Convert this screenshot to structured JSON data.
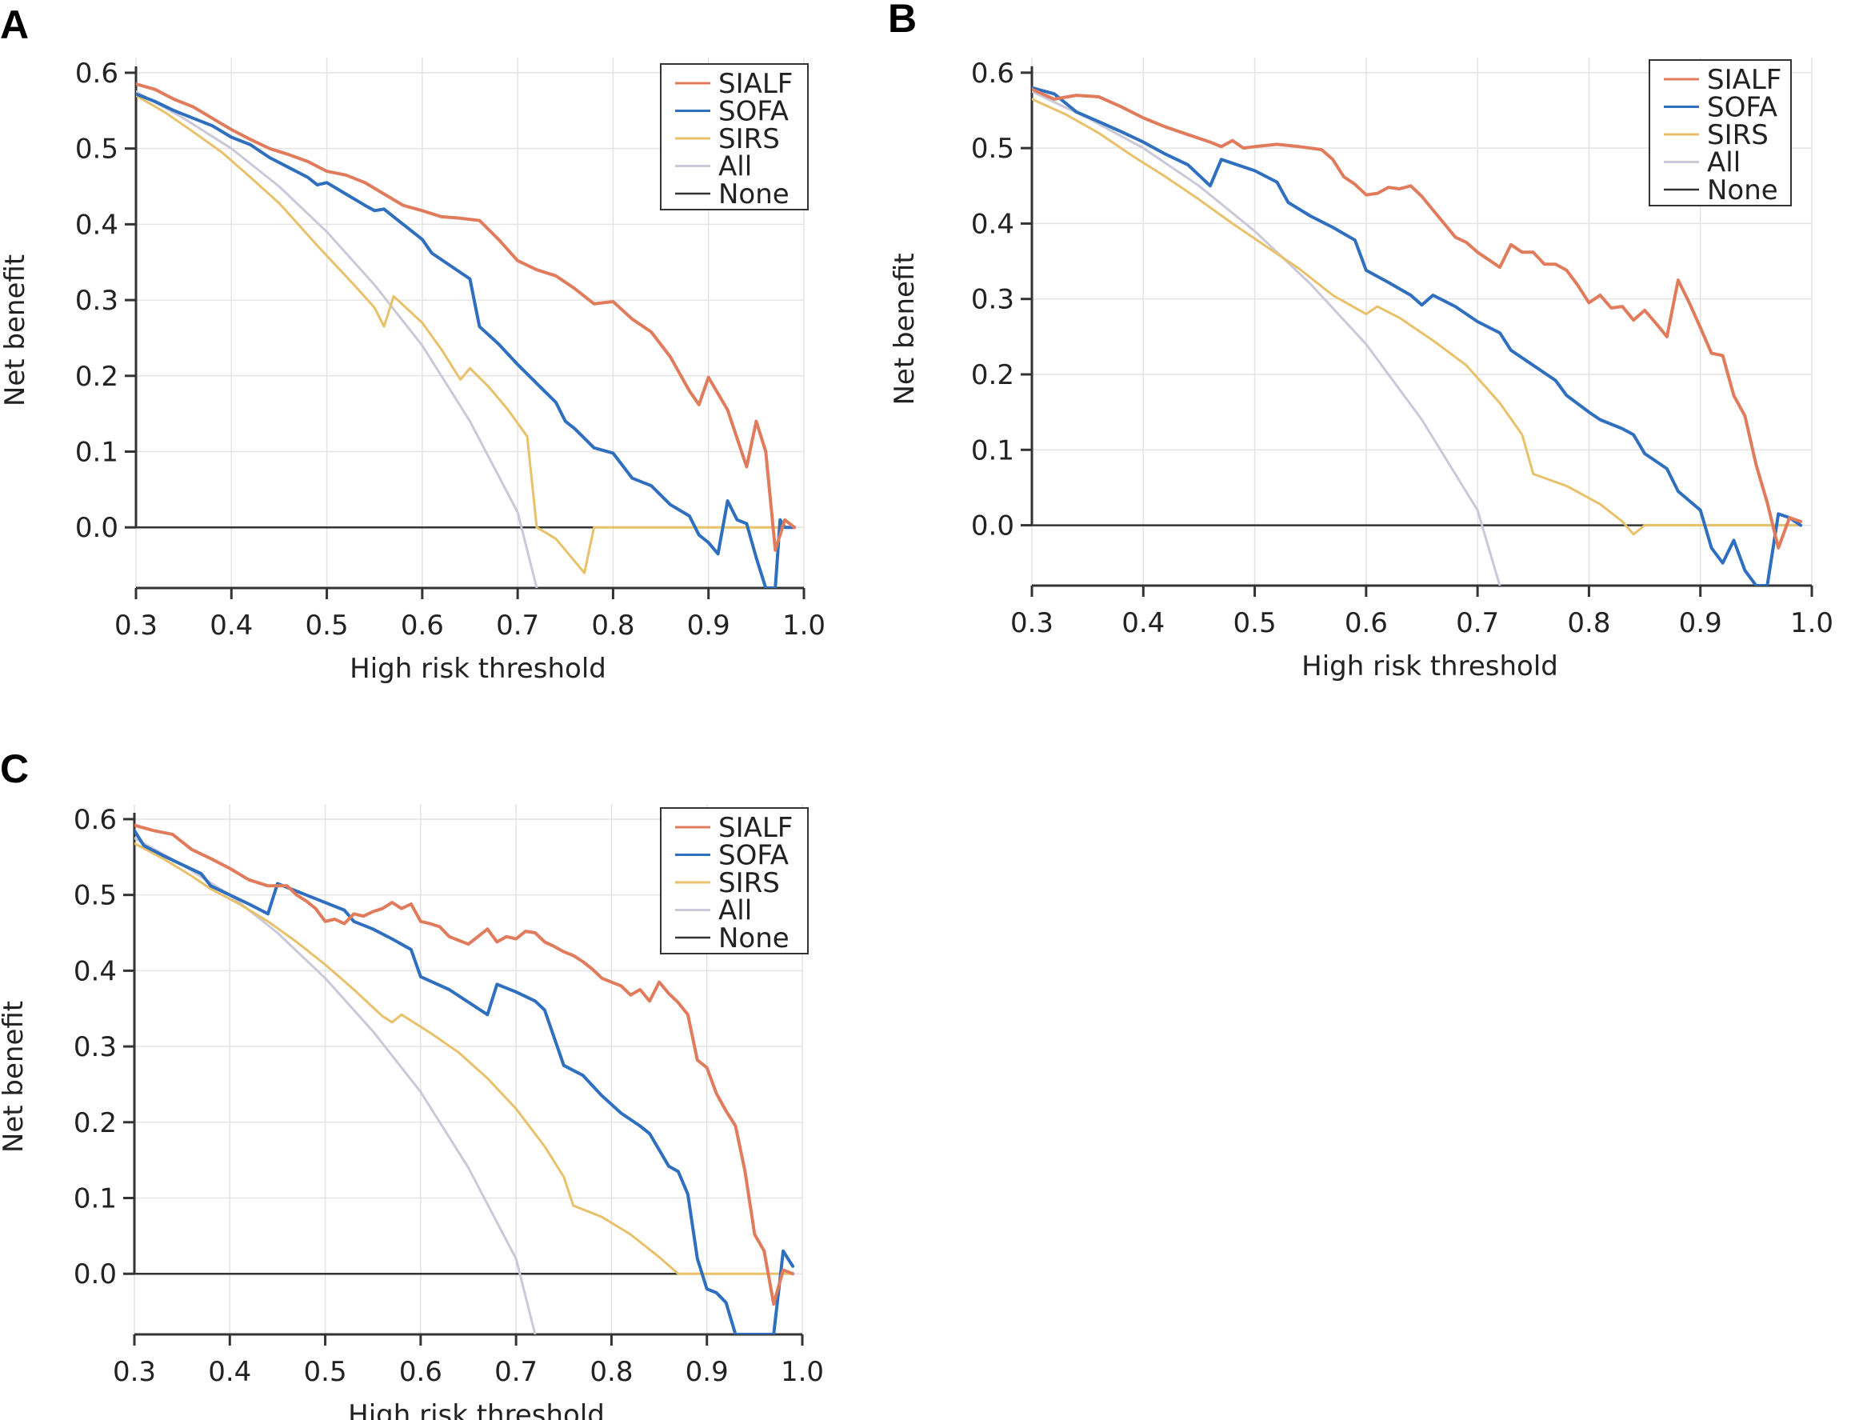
{
  "chart_data": [
    {
      "type": "line",
      "panel_label": "A",
      "xlabel": "High risk threshold",
      "ylabel": "Net benefit",
      "xlim": [
        0.3,
        1.0
      ],
      "ylim": [
        -0.08,
        0.62
      ],
      "xticks": [
        "0.3",
        "0.4",
        "0.5",
        "0.6",
        "0.7",
        "0.8",
        "0.9",
        "1.0"
      ],
      "yticks": [
        "0.0",
        "0.1",
        "0.2",
        "0.3",
        "0.4",
        "0.5",
        "0.6"
      ],
      "grid": true,
      "legend": "top-right",
      "series": [
        {
          "name": "SIALF",
          "color": "#e07b5c",
          "x": [
            0.3,
            0.32,
            0.34,
            0.36,
            0.38,
            0.4,
            0.42,
            0.44,
            0.46,
            0.48,
            0.5,
            0.52,
            0.54,
            0.56,
            0.58,
            0.6,
            0.62,
            0.64,
            0.66,
            0.68,
            0.7,
            0.72,
            0.74,
            0.76,
            0.78,
            0.8,
            0.82,
            0.84,
            0.86,
            0.88,
            0.89,
            0.9,
            0.92,
            0.94,
            0.95,
            0.96,
            0.97,
            0.98,
            0.99
          ],
          "y": [
            0.585,
            0.578,
            0.565,
            0.555,
            0.54,
            0.525,
            0.512,
            0.5,
            0.492,
            0.483,
            0.47,
            0.465,
            0.455,
            0.44,
            0.425,
            0.418,
            0.41,
            0.408,
            0.405,
            0.38,
            0.352,
            0.34,
            0.332,
            0.315,
            0.295,
            0.298,
            0.275,
            0.258,
            0.225,
            0.18,
            0.162,
            0.198,
            0.155,
            0.08,
            0.14,
            0.1,
            -0.03,
            0.01,
            0.0
          ]
        },
        {
          "name": "SOFA",
          "color": "#2f6fbf",
          "x": [
            0.3,
            0.32,
            0.34,
            0.36,
            0.38,
            0.4,
            0.42,
            0.44,
            0.46,
            0.48,
            0.49,
            0.5,
            0.52,
            0.54,
            0.55,
            0.56,
            0.58,
            0.6,
            0.61,
            0.63,
            0.65,
            0.66,
            0.68,
            0.7,
            0.72,
            0.74,
            0.75,
            0.76,
            0.78,
            0.8,
            0.82,
            0.84,
            0.86,
            0.88,
            0.89,
            0.9,
            0.91,
            0.92,
            0.93,
            0.94,
            0.95,
            0.96,
            0.97,
            0.975,
            0.98,
            0.99
          ],
          "y": [
            0.572,
            0.562,
            0.55,
            0.54,
            0.53,
            0.515,
            0.505,
            0.488,
            0.475,
            0.462,
            0.452,
            0.455,
            0.44,
            0.425,
            0.418,
            0.42,
            0.4,
            0.38,
            0.362,
            0.345,
            0.328,
            0.265,
            0.242,
            0.215,
            0.19,
            0.165,
            0.14,
            0.13,
            0.105,
            0.098,
            0.065,
            0.055,
            0.03,
            0.015,
            -0.01,
            -0.02,
            -0.035,
            0.035,
            0.01,
            0.005,
            -0.04,
            -0.08,
            -0.08,
            0.01,
            0.0,
            0.0
          ]
        },
        {
          "name": "SIRS",
          "color": "#e8c16a",
          "x": [
            0.3,
            0.33,
            0.36,
            0.39,
            0.42,
            0.45,
            0.47,
            0.49,
            0.51,
            0.53,
            0.55,
            0.56,
            0.57,
            0.6,
            0.62,
            0.64,
            0.65,
            0.67,
            0.69,
            0.71,
            0.72,
            0.74,
            0.76,
            0.77,
            0.78,
            0.8,
            0.85,
            0.9,
            0.95,
            0.99
          ],
          "y": [
            0.57,
            0.548,
            0.522,
            0.495,
            0.462,
            0.428,
            0.4,
            0.372,
            0.345,
            0.318,
            0.29,
            0.265,
            0.305,
            0.27,
            0.235,
            0.195,
            0.21,
            0.185,
            0.155,
            0.12,
            0.0,
            -0.015,
            -0.045,
            -0.06,
            0.0,
            0.0,
            0.0,
            0.0,
            0.0,
            0.0
          ]
        },
        {
          "name": "All",
          "color": "#c9c9d9",
          "x": [
            0.3,
            0.35,
            0.4,
            0.45,
            0.5,
            0.55,
            0.6,
            0.65,
            0.7,
            0.72
          ],
          "y": [
            0.575,
            0.54,
            0.5,
            0.45,
            0.39,
            0.32,
            0.24,
            0.14,
            0.02,
            -0.08
          ]
        },
        {
          "name": "None",
          "color": "#333333",
          "x": [
            0.3,
            1.0
          ],
          "y": [
            0.0,
            0.0
          ]
        }
      ]
    },
    {
      "type": "line",
      "panel_label": "B",
      "xlabel": "High risk threshold",
      "ylabel": "Net benefit",
      "xlim": [
        0.3,
        1.0
      ],
      "ylim": [
        -0.08,
        0.62
      ],
      "xticks": [
        "0.3",
        "0.4",
        "0.5",
        "0.6",
        "0.7",
        "0.8",
        "0.9",
        "1.0"
      ],
      "yticks": [
        "0.0",
        "0.1",
        "0.2",
        "0.3",
        "0.4",
        "0.5",
        "0.6"
      ],
      "grid": true,
      "legend": "top-right",
      "series": [
        {
          "name": "SIALF",
          "color": "#e07b5c",
          "x": [
            0.3,
            0.32,
            0.34,
            0.36,
            0.38,
            0.4,
            0.42,
            0.44,
            0.46,
            0.47,
            0.48,
            0.49,
            0.5,
            0.52,
            0.54,
            0.56,
            0.57,
            0.58,
            0.59,
            0.6,
            0.61,
            0.62,
            0.63,
            0.64,
            0.65,
            0.66,
            0.67,
            0.68,
            0.69,
            0.7,
            0.71,
            0.72,
            0.73,
            0.74,
            0.75,
            0.76,
            0.77,
            0.78,
            0.79,
            0.8,
            0.81,
            0.82,
            0.83,
            0.84,
            0.85,
            0.86,
            0.87,
            0.88,
            0.89,
            0.9,
            0.91,
            0.92,
            0.93,
            0.94,
            0.95,
            0.96,
            0.97,
            0.98,
            0.99
          ],
          "y": [
            0.578,
            0.565,
            0.57,
            0.568,
            0.555,
            0.54,
            0.528,
            0.518,
            0.508,
            0.502,
            0.51,
            0.5,
            0.502,
            0.505,
            0.502,
            0.498,
            0.485,
            0.462,
            0.452,
            0.438,
            0.44,
            0.448,
            0.446,
            0.45,
            0.436,
            0.418,
            0.4,
            0.382,
            0.375,
            0.362,
            0.352,
            0.342,
            0.372,
            0.362,
            0.362,
            0.346,
            0.346,
            0.338,
            0.318,
            0.295,
            0.305,
            0.288,
            0.29,
            0.272,
            0.285,
            0.268,
            0.25,
            0.325,
            0.295,
            0.262,
            0.228,
            0.225,
            0.172,
            0.145,
            0.08,
            0.03,
            -0.03,
            0.01,
            0.005
          ]
        },
        {
          "name": "SOFA",
          "color": "#2f6fbf",
          "x": [
            0.3,
            0.32,
            0.34,
            0.36,
            0.38,
            0.4,
            0.42,
            0.44,
            0.46,
            0.47,
            0.5,
            0.52,
            0.53,
            0.55,
            0.57,
            0.59,
            0.6,
            0.62,
            0.64,
            0.65,
            0.66,
            0.68,
            0.7,
            0.72,
            0.73,
            0.75,
            0.77,
            0.78,
            0.8,
            0.81,
            0.83,
            0.84,
            0.85,
            0.87,
            0.88,
            0.9,
            0.91,
            0.92,
            0.93,
            0.94,
            0.95,
            0.96,
            0.97,
            0.98,
            0.99
          ],
          "y": [
            0.58,
            0.572,
            0.548,
            0.535,
            0.522,
            0.508,
            0.492,
            0.478,
            0.45,
            0.485,
            0.47,
            0.455,
            0.428,
            0.41,
            0.395,
            0.378,
            0.338,
            0.322,
            0.305,
            0.292,
            0.305,
            0.29,
            0.27,
            0.255,
            0.232,
            0.212,
            0.192,
            0.172,
            0.15,
            0.14,
            0.128,
            0.12,
            0.095,
            0.075,
            0.045,
            0.02,
            -0.03,
            -0.05,
            -0.02,
            -0.06,
            -0.08,
            -0.08,
            0.015,
            0.01,
            0.0
          ]
        },
        {
          "name": "SIRS",
          "color": "#e8c16a",
          "x": [
            0.3,
            0.33,
            0.36,
            0.39,
            0.42,
            0.45,
            0.48,
            0.51,
            0.54,
            0.57,
            0.6,
            0.61,
            0.63,
            0.66,
            0.69,
            0.72,
            0.74,
            0.75,
            0.78,
            0.81,
            0.83,
            0.84,
            0.85,
            0.9,
            0.95,
            0.99
          ],
          "y": [
            0.565,
            0.545,
            0.52,
            0.49,
            0.462,
            0.432,
            0.4,
            0.37,
            0.34,
            0.305,
            0.28,
            0.29,
            0.275,
            0.245,
            0.212,
            0.162,
            0.12,
            0.068,
            0.052,
            0.028,
            0.005,
            -0.012,
            0.0,
            0.0,
            0.0,
            0.0
          ]
        },
        {
          "name": "All",
          "color": "#c9c9d9",
          "x": [
            0.3,
            0.35,
            0.4,
            0.45,
            0.5,
            0.55,
            0.6,
            0.65,
            0.7,
            0.72
          ],
          "y": [
            0.575,
            0.54,
            0.5,
            0.45,
            0.39,
            0.32,
            0.24,
            0.14,
            0.02,
            -0.08
          ]
        },
        {
          "name": "None",
          "color": "#333333",
          "x": [
            0.3,
            1.0
          ],
          "y": [
            0.0,
            0.0
          ]
        }
      ]
    },
    {
      "type": "line",
      "panel_label": "C",
      "xlabel": "High risk threshold",
      "ylabel": "Net benefit",
      "xlim": [
        0.3,
        1.0
      ],
      "ylim": [
        -0.08,
        0.62
      ],
      "xticks": [
        "0.3",
        "0.4",
        "0.5",
        "0.6",
        "0.7",
        "0.8",
        "0.9",
        "1.0"
      ],
      "yticks": [
        "0.0",
        "0.1",
        "0.2",
        "0.3",
        "0.4",
        "0.5",
        "0.6"
      ],
      "grid": true,
      "legend": "top-right",
      "series": [
        {
          "name": "SIALF",
          "color": "#e07b5c",
          "x": [
            0.3,
            0.32,
            0.34,
            0.36,
            0.38,
            0.4,
            0.42,
            0.44,
            0.46,
            0.47,
            0.48,
            0.49,
            0.5,
            0.51,
            0.52,
            0.53,
            0.54,
            0.55,
            0.56,
            0.57,
            0.58,
            0.59,
            0.6,
            0.61,
            0.62,
            0.63,
            0.64,
            0.65,
            0.66,
            0.67,
            0.68,
            0.69,
            0.7,
            0.71,
            0.72,
            0.73,
            0.74,
            0.75,
            0.76,
            0.77,
            0.78,
            0.79,
            0.8,
            0.81,
            0.82,
            0.83,
            0.84,
            0.85,
            0.86,
            0.87,
            0.88,
            0.89,
            0.9,
            0.91,
            0.92,
            0.93,
            0.94,
            0.95,
            0.96,
            0.97,
            0.98,
            0.99
          ],
          "y": [
            0.592,
            0.585,
            0.58,
            0.56,
            0.548,
            0.535,
            0.52,
            0.512,
            0.512,
            0.5,
            0.492,
            0.482,
            0.465,
            0.468,
            0.462,
            0.475,
            0.472,
            0.478,
            0.482,
            0.49,
            0.482,
            0.488,
            0.465,
            0.462,
            0.458,
            0.445,
            0.44,
            0.435,
            0.445,
            0.455,
            0.438,
            0.445,
            0.442,
            0.452,
            0.45,
            0.438,
            0.432,
            0.425,
            0.42,
            0.412,
            0.402,
            0.39,
            0.385,
            0.38,
            0.368,
            0.375,
            0.36,
            0.385,
            0.37,
            0.358,
            0.342,
            0.282,
            0.272,
            0.238,
            0.215,
            0.195,
            0.135,
            0.052,
            0.03,
            -0.04,
            0.005,
            0.0
          ]
        },
        {
          "name": "SOFA",
          "color": "#2f6fbf",
          "x": [
            0.3,
            0.31,
            0.33,
            0.35,
            0.37,
            0.38,
            0.4,
            0.42,
            0.44,
            0.45,
            0.48,
            0.52,
            0.53,
            0.55,
            0.57,
            0.59,
            0.6,
            0.63,
            0.67,
            0.68,
            0.7,
            0.72,
            0.73,
            0.75,
            0.77,
            0.79,
            0.81,
            0.83,
            0.84,
            0.86,
            0.87,
            0.88,
            0.89,
            0.9,
            0.91,
            0.92,
            0.93,
            0.97,
            0.98,
            0.99
          ],
          "y": [
            0.585,
            0.565,
            0.552,
            0.54,
            0.528,
            0.512,
            0.5,
            0.488,
            0.475,
            0.515,
            0.5,
            0.48,
            0.465,
            0.455,
            0.442,
            0.428,
            0.392,
            0.375,
            0.342,
            0.382,
            0.372,
            0.36,
            0.348,
            0.275,
            0.262,
            0.235,
            0.212,
            0.195,
            0.185,
            0.142,
            0.135,
            0.105,
            0.02,
            -0.02,
            -0.025,
            -0.038,
            -0.08,
            -0.08,
            0.03,
            0.01
          ]
        },
        {
          "name": "SIRS",
          "color": "#e8c16a",
          "x": [
            0.3,
            0.33,
            0.36,
            0.38,
            0.41,
            0.44,
            0.47,
            0.5,
            0.53,
            0.56,
            0.57,
            0.58,
            0.61,
            0.64,
            0.67,
            0.7,
            0.73,
            0.75,
            0.76,
            0.79,
            0.82,
            0.85,
            0.87,
            0.88,
            0.9,
            0.95,
            0.99
          ],
          "y": [
            0.568,
            0.548,
            0.525,
            0.508,
            0.488,
            0.465,
            0.438,
            0.408,
            0.375,
            0.34,
            0.332,
            0.342,
            0.318,
            0.292,
            0.258,
            0.218,
            0.168,
            0.128,
            0.09,
            0.075,
            0.052,
            0.022,
            0.0,
            0.0,
            0.0,
            0.0,
            0.0
          ]
        },
        {
          "name": "All",
          "color": "#c9c9d9",
          "x": [
            0.3,
            0.35,
            0.4,
            0.45,
            0.5,
            0.55,
            0.6,
            0.65,
            0.7,
            0.72
          ],
          "y": [
            0.575,
            0.54,
            0.5,
            0.45,
            0.39,
            0.32,
            0.24,
            0.14,
            0.02,
            -0.08
          ]
        },
        {
          "name": "None",
          "color": "#333333",
          "x": [
            0.3,
            1.0
          ],
          "y": [
            0.0,
            0.0
          ]
        }
      ]
    }
  ]
}
